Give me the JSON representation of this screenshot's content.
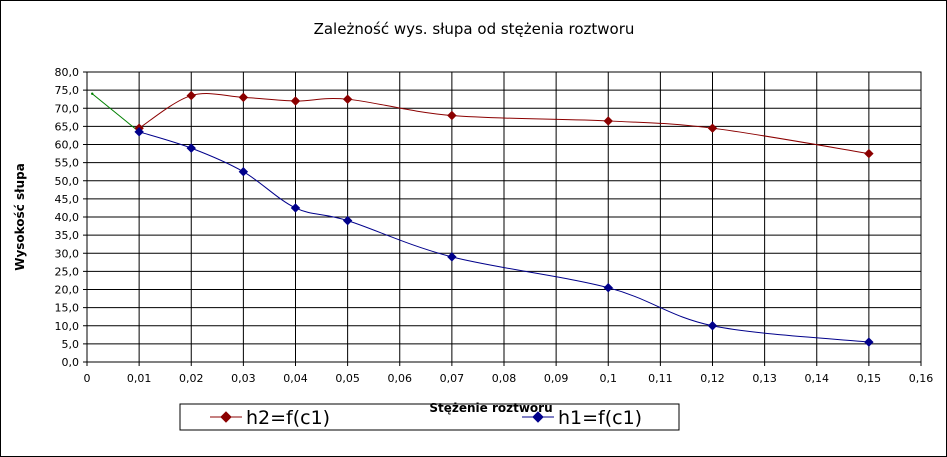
{
  "chart_data": {
    "type": "line",
    "title": "Zależność wys. słupa od stężenia roztworu",
    "xlabel": "Stężenie roztworu",
    "ylabel": "Wysokość słupa",
    "xlim": [
      0,
      0.16
    ],
    "ylim": [
      0,
      80
    ],
    "x_ticks": [
      "0",
      "0,01",
      "0,02",
      "0,03",
      "0,04",
      "0,05",
      "0,06",
      "0,07",
      "0,08",
      "0,09",
      "0,1",
      "0,11",
      "0,12",
      "0,13",
      "0,14",
      "0,15",
      "0,16"
    ],
    "y_ticks": [
      "0,0",
      "5,0",
      "10,0",
      "15,0",
      "20,0",
      "25,0",
      "30,0",
      "35,0",
      "40,0",
      "45,0",
      "50,0",
      "55,0",
      "60,0",
      "65,0",
      "70,0",
      "75,0",
      "80,0"
    ],
    "grid": true,
    "legend_position": "bottom",
    "series": [
      {
        "name": "h2=f(c1)",
        "color": "#8b0000",
        "marker": "diamond",
        "smooth": true,
        "x": [
          0.01,
          0.02,
          0.03,
          0.04,
          0.05,
          0.07,
          0.1,
          0.12,
          0.15
        ],
        "y": [
          64.5,
          73.5,
          73.0,
          72.0,
          72.5,
          68.0,
          66.5,
          64.5,
          57.5
        ]
      },
      {
        "name": "h1=f(c1)",
        "color": "#00008b",
        "marker": "diamond",
        "smooth": true,
        "x": [
          0.01,
          0.02,
          0.03,
          0.04,
          0.05,
          0.07,
          0.1,
          0.12,
          0.15
        ],
        "y": [
          63.5,
          59.0,
          52.5,
          42.5,
          39.0,
          29.0,
          20.5,
          10.0,
          5.5
        ]
      }
    ],
    "extra_lines": [
      {
        "color": "#008000",
        "x": [
          0.001,
          0.01
        ],
        "y": [
          74.0,
          63.5
        ]
      }
    ]
  }
}
